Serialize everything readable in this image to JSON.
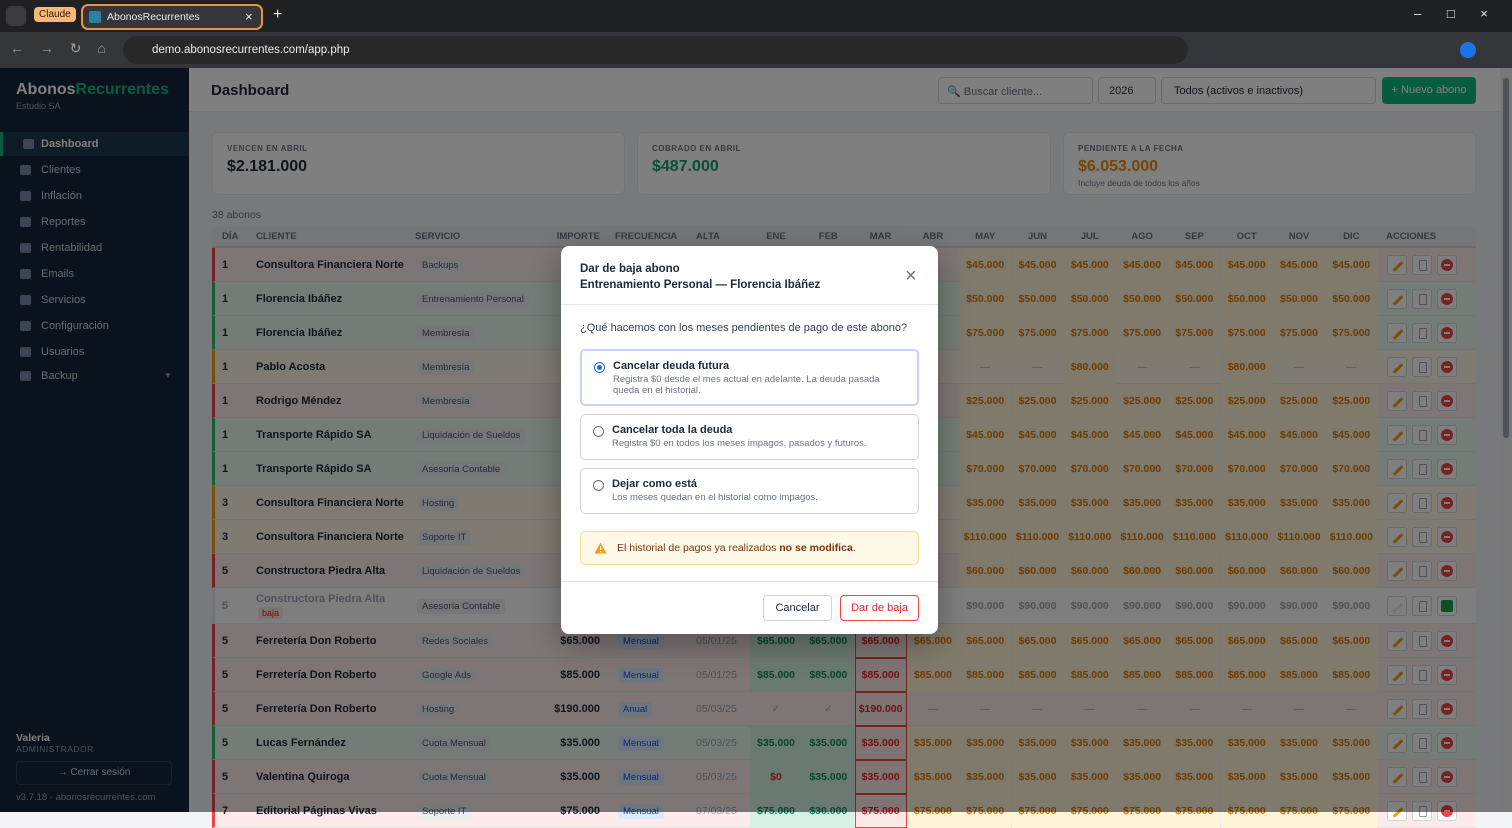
{
  "browser": {
    "tab_group": "Claude",
    "tab_title": "AbonosRecurrentes",
    "url": "demo.abonosrecurrentes.com/app.php"
  },
  "sidebar": {
    "brand_a": "Abonos",
    "brand_b": "Recurrentes",
    "org": "Estudio SA",
    "active": 0,
    "nav": [
      "Dashboard",
      "Clientes",
      "Inflación",
      "Reportes",
      "Rentabilidad",
      "Emails",
      "Servicios",
      "Configuración",
      "Usuarios",
      "Backup"
    ],
    "user": "Valeria",
    "role": "ADMINISTRADOR",
    "logout": "→ Cerrar sesión",
    "footer": "v3.7.18 · abonosrecurrentes.com"
  },
  "header": {
    "title": "Dashboard",
    "search": "🔍 Buscar cliente...",
    "year": "2026",
    "filter": "Todos (activos e inactivos)",
    "new_button": "+ Nuevo abono"
  },
  "stats": [
    {
      "label": "VENCEN EN ABRIL",
      "value": "$2.181.000",
      "color": "#1f2937"
    },
    {
      "label": "COBRADO EN ABRIL",
      "value": "$487.000",
      "color": "#0f9d76"
    },
    {
      "label": "PENDIENTE A LA FECHA",
      "value": "$6.053.000",
      "color": "#e58a12",
      "note": "Incluye deuda de todos los años"
    }
  ],
  "table": {
    "count": "38 abonos",
    "columns": [
      "DÍA",
      "CLIENTE",
      "SERVICIO",
      "IMPORTE",
      "FRECUENCIA",
      "ALTA",
      "ENE",
      "FEB",
      "MAR",
      "ABR",
      "MAY",
      "JUN",
      "JUL",
      "AGO",
      "SEP",
      "OCT",
      "NOV",
      "DIC",
      "ACCIONES"
    ],
    "rows": [
      {
        "dia": 1,
        "cliente": "Consultora Financiera Norte",
        "servicio": "Backups",
        "importe": null,
        "frecuencia": null,
        "alta": null,
        "accent": "#ef4444",
        "months": [
          null,
          null,
          null,
          null,
          "$45.000",
          "$45.000",
          "$45.000",
          "$45.000",
          "$45.000",
          "$45.000",
          "$45.000",
          "$45.000"
        ]
      },
      {
        "dia": 1,
        "cliente": "Florencia Ibáñez",
        "servicio": "Entrenamiento Personal",
        "importe": null,
        "frecuencia": null,
        "alta": null,
        "accent": "#22c55e",
        "months": [
          null,
          null,
          null,
          null,
          "$50.000",
          "$50.000",
          "$50.000",
          "$50.000",
          "$50.000",
          "$50.000",
          "$50.000",
          "$50.000"
        ]
      },
      {
        "dia": 1,
        "cliente": "Florencia Ibáñez",
        "servicio": "Membresía",
        "importe": null,
        "frecuencia": null,
        "alta": null,
        "accent": "#22c55e",
        "months": [
          null,
          null,
          null,
          null,
          "$75.000",
          "$75.000",
          "$75.000",
          "$75.000",
          "$75.000",
          "$75.000",
          "$75.000",
          "$75.000"
        ]
      },
      {
        "dia": 1,
        "cliente": "Pablo Acosta",
        "servicio": "Membresía",
        "importe": null,
        "frecuencia": null,
        "alta": null,
        "accent": "#f59e0b",
        "months": [
          null,
          null,
          null,
          null,
          "—",
          "—",
          "$80.000",
          "—",
          "—",
          "$80.000",
          "—",
          "—"
        ]
      },
      {
        "dia": 1,
        "cliente": "Rodrigo Méndez",
        "servicio": "Membresía",
        "importe": null,
        "frecuencia": null,
        "alta": null,
        "accent": "#ef4444",
        "months": [
          null,
          null,
          null,
          null,
          "$25.000",
          "$25.000",
          "$25.000",
          "$25.000",
          "$25.000",
          "$25.000",
          "$25.000",
          "$25.000"
        ]
      },
      {
        "dia": 1,
        "cliente": "Transporte Rápido SA",
        "servicio": "Liquidación de Sueldos",
        "importe": null,
        "frecuencia": null,
        "alta": null,
        "accent": "#22c55e",
        "months": [
          null,
          null,
          null,
          null,
          "$45.000",
          "$45.000",
          "$45.000",
          "$45.000",
          "$45.000",
          "$45.000",
          "$45.000",
          "$45.000"
        ]
      },
      {
        "dia": 1,
        "cliente": "Transporte Rápido SA",
        "servicio": "Asesoría Contable",
        "importe": null,
        "frecuencia": null,
        "alta": null,
        "accent": "#22c55e",
        "months": [
          null,
          null,
          null,
          null,
          "$70.000",
          "$70.000",
          "$70.000",
          "$70.000",
          "$70.000",
          "$70.000",
          "$70.000",
          "$70.000"
        ]
      },
      {
        "dia": 3,
        "cliente": "Consultora Financiera Norte",
        "servicio": "Hosting",
        "importe": null,
        "frecuencia": null,
        "alta": null,
        "accent": "#f59e0b",
        "months": [
          null,
          null,
          null,
          null,
          "$35.000",
          "$35.000",
          "$35.000",
          "$35.000",
          "$35.000",
          "$35.000",
          "$35.000",
          "$35.000"
        ]
      },
      {
        "dia": 3,
        "cliente": "Consultora Financiera Norte",
        "servicio": "Soporte IT",
        "importe": null,
        "frecuencia": null,
        "alta": null,
        "accent": "#f59e0b",
        "months": [
          null,
          null,
          null,
          null,
          "$110.000",
          "$110.000",
          "$110.000",
          "$110.000",
          "$110.000",
          "$110.000",
          "$110.000",
          "$110.000"
        ]
      },
      {
        "dia": 5,
        "cliente": "Constructora Piedra Alta",
        "servicio": "Liquidación de Sueldos",
        "importe": null,
        "frecuencia": null,
        "alta": null,
        "accent": "#ef4444",
        "months": [
          null,
          null,
          null,
          null,
          "$60.000",
          "$60.000",
          "$60.000",
          "$60.000",
          "$60.000",
          "$60.000",
          "$60.000",
          "$60.000"
        ]
      },
      {
        "dia": 5,
        "cliente": "Constructora Piedra Alta",
        "badge": "baja",
        "servicio": "Asesoría Contable",
        "importe": null,
        "frecuencia": null,
        "alta": null,
        "accent": "#e5e7eb",
        "months": [
          null,
          null,
          null,
          null,
          "$90.000",
          "$90.000",
          "$90.000",
          "$90.000",
          "$90.000",
          "$90.000",
          "$90.000",
          "$90.000"
        ]
      },
      {
        "dia": 5,
        "cliente": "Ferretería Don Roberto",
        "servicio": "Redes Sociales",
        "importe": "$65.000",
        "frecuencia": "Mensual",
        "alta": "05/01/25",
        "accent": "#ef4444",
        "months": [
          "$65.000",
          "$65.000",
          "$65.000",
          "$65.000",
          "$65.000",
          "$65.000",
          "$65.000",
          "$65.000",
          "$65.000",
          "$65.000",
          "$65.000",
          "$65.000"
        ]
      },
      {
        "dia": 5,
        "cliente": "Ferretería Don Roberto",
        "servicio": "Google Ads",
        "importe": "$85.000",
        "frecuencia": "Mensual",
        "alta": "05/01/25",
        "accent": "#ef4444",
        "months": [
          "$85.000",
          "$85.000",
          "$85.000",
          "$85.000",
          "$85.000",
          "$85.000",
          "$85.000",
          "$85.000",
          "$85.000",
          "$85.000",
          "$85.000",
          "$85.000"
        ]
      },
      {
        "dia": 5,
        "cliente": "Ferretería Don Roberto",
        "servicio": "Hosting",
        "importe": "$190.000",
        "frecuencia": "Anual",
        "alta": "05/03/25",
        "accent": "#ef4444",
        "months": [
          "✓",
          "✓",
          "$190.000",
          "—",
          "—",
          "—",
          "—",
          "—",
          "—",
          "—",
          "—",
          "—"
        ]
      },
      {
        "dia": 5,
        "cliente": "Lucas Fernández",
        "servicio": "Cuota Mensual",
        "importe": "$35.000",
        "frecuencia": "Mensual",
        "alta": "05/03/25",
        "accent": "#22c55e",
        "months": [
          "$35.000",
          "$35.000",
          "$35.000",
          "$35.000",
          "$35.000",
          "$35.000",
          "$35.000",
          "$35.000",
          "$35.000",
          "$35.000",
          "$35.000",
          "$35.000"
        ]
      },
      {
        "dia": 5,
        "cliente": "Valentina Quiroga",
        "servicio": "Cuota Mensual",
        "importe": "$35.000",
        "frecuencia": "Mensual",
        "alta": "05/03/25",
        "accent": "#ef4444",
        "months": [
          "$0",
          "$35.000",
          "$35.000",
          "$35.000",
          "$35.000",
          "$35.000",
          "$35.000",
          "$35.000",
          "$35.000",
          "$35.000",
          "$35.000",
          "$35.000"
        ]
      },
      {
        "dia": 7,
        "cliente": "Editorial Páginas Vivas",
        "servicio": "Soporte IT",
        "importe": "$75.000",
        "frecuencia": "Mensual",
        "alta": "07/03/25",
        "accent": "#ef4444",
        "months": [
          "$75.000",
          "$30.000",
          "$75.000",
          "$75.000",
          "$75.000",
          "$75.000",
          "$75.000",
          "$75.000",
          "$75.000",
          "$75.000",
          "$75.000",
          "$75.000"
        ]
      }
    ]
  },
  "modal": {
    "title": "Dar de baja abono",
    "subtitle": "Entrenamiento Personal — Florencia Ibáñez",
    "question": "¿Qué hacemos con los meses pendientes de pago de este abono?",
    "options": [
      {
        "title": "Cancelar deuda futura",
        "desc": "Registra $0 desde el mes actual en adelante. La deuda pasada queda en el historial.",
        "selected": true
      },
      {
        "title": "Cancelar toda la deuda",
        "desc": "Registra $0 en todos los meses impagos, pasados y futuros.",
        "selected": false
      },
      {
        "title": "Dejar como está",
        "desc": "Los meses quedan en el historial como impagos.",
        "selected": false
      }
    ],
    "warning_pre": "El historial de pagos ya realizados ",
    "warning_bold": "no se modifica",
    "warning_post": ".",
    "cancel": "Cancelar",
    "confirm": "Dar de baja"
  }
}
